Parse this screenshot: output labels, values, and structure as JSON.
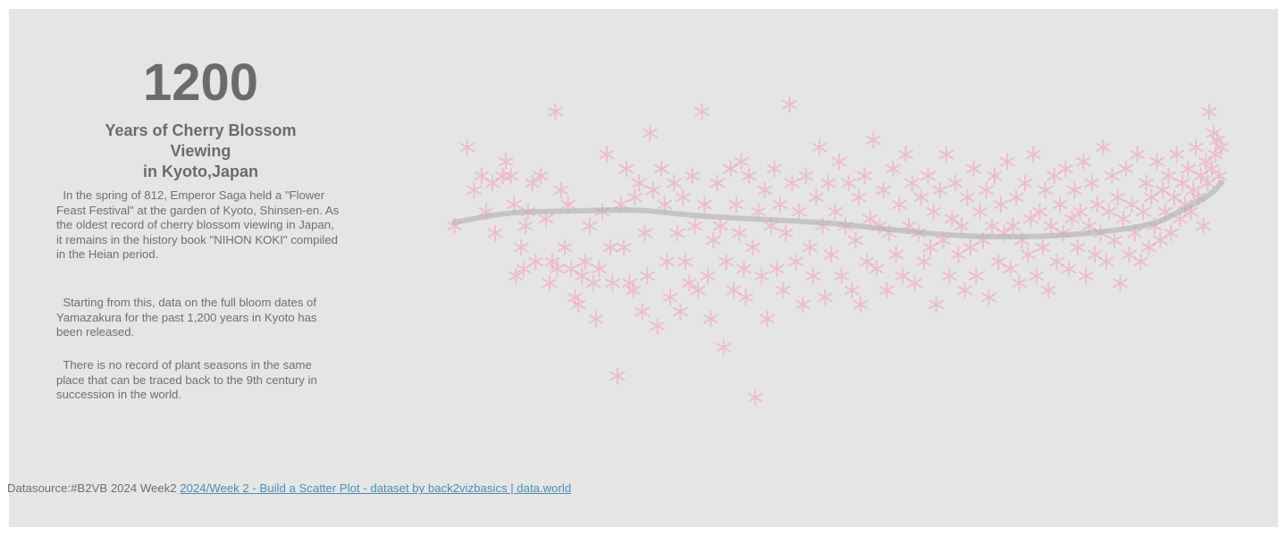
{
  "headline": {
    "number": "1200",
    "subtitle_line1": "Years of Cherry Blossom",
    "subtitle_line2": "Viewing",
    "subtitle_line3": "in Kyoto,Japan"
  },
  "paragraphs": [
    "In the spring of 812, Emperor Saga held a \"Flower Feast Festival\" at the garden of Kyoto, Shinsen-en. As the oldest record of cherry blossom viewing in Japan, it remains in the history book \"NIHON KOKI\" compiled in the Heian period.",
    "Starting from this, data on the full bloom dates of Yamazakura for the past 1,200 years in Kyoto has been released.",
    "There is no record of plant seasons in the same place that can be traced back to the 9th century in succession in the world."
  ],
  "footer": {
    "prefix": "Datasource:#B2VB 2024 Week2 ",
    "link_text": "2024/Week 2 - Build a Scatter Plot - dataset by back2vizbasics | data.world"
  },
  "colors": {
    "background": "#e5e5e5",
    "marker": "#f0a0be",
    "trend": "#b4b4b4",
    "text": "#6b6b6b",
    "link": "#4a8fb3"
  },
  "chart_data": {
    "type": "scatter",
    "marker": "asterisk",
    "grid": false,
    "axes_visible": false,
    "xlim": [
      800,
      2025
    ],
    "ylim": [
      80,
      125
    ],
    "trend_line": {
      "x": [
        812,
        900,
        1000,
        1100,
        1200,
        1300,
        1400,
        1500,
        1600,
        1700,
        1800,
        1900,
        1950,
        2000,
        2021
      ],
      "y": [
        104.5,
        105.8,
        106.1,
        106.2,
        105.4,
        104.9,
        104.4,
        103.5,
        102.7,
        102.5,
        102.9,
        104.1,
        105.8,
        108.3,
        110.1
      ]
    },
    "points": [
      [
        812,
        104
      ],
      [
        832,
        115
      ],
      [
        843,
        109
      ],
      [
        855,
        111
      ],
      [
        862,
        106
      ],
      [
        872,
        110
      ],
      [
        876,
        103
      ],
      [
        888,
        111
      ],
      [
        893,
        113
      ],
      [
        901,
        111
      ],
      [
        906,
        107
      ],
      [
        909,
        97
      ],
      [
        917,
        101
      ],
      [
        921,
        98
      ],
      [
        924,
        104
      ],
      [
        928,
        106
      ],
      [
        935,
        110
      ],
      [
        940,
        99
      ],
      [
        948,
        111
      ],
      [
        956,
        105
      ],
      [
        962,
        96
      ],
      [
        966,
        99
      ],
      [
        971,
        120
      ],
      [
        974,
        98
      ],
      [
        980,
        109
      ],
      [
        986,
        101
      ],
      [
        991,
        107
      ],
      [
        996,
        98
      ],
      [
        1002,
        94
      ],
      [
        1007,
        93
      ],
      [
        1013,
        97
      ],
      [
        1018,
        99
      ],
      [
        1025,
        104
      ],
      [
        1031,
        96
      ],
      [
        1035,
        91
      ],
      [
        1040,
        98
      ],
      [
        1045,
        106
      ],
      [
        1052,
        114
      ],
      [
        1058,
        101
      ],
      [
        1061,
        96
      ],
      [
        1069,
        83
      ],
      [
        1074,
        107
      ],
      [
        1079,
        101
      ],
      [
        1083,
        112
      ],
      [
        1088,
        96
      ],
      [
        1094,
        95
      ],
      [
        1096,
        108
      ],
      [
        1103,
        110
      ],
      [
        1108,
        92
      ],
      [
        1112,
        103
      ],
      [
        1116,
        97
      ],
      [
        1120,
        117
      ],
      [
        1125,
        109
      ],
      [
        1132,
        90
      ],
      [
        1138,
        112
      ],
      [
        1143,
        107
      ],
      [
        1147,
        99
      ],
      [
        1152,
        94
      ],
      [
        1158,
        110
      ],
      [
        1163,
        103
      ],
      [
        1168,
        92
      ],
      [
        1172,
        108
      ],
      [
        1176,
        99
      ],
      [
        1182,
        96
      ],
      [
        1187,
        111
      ],
      [
        1191,
        104
      ],
      [
        1196,
        95
      ],
      [
        1202,
        120
      ],
      [
        1206,
        107
      ],
      [
        1211,
        97
      ],
      [
        1216,
        91
      ],
      [
        1220,
        102
      ],
      [
        1226,
        110
      ],
      [
        1231,
        104
      ],
      [
        1236,
        87
      ],
      [
        1240,
        99
      ],
      [
        1247,
        112
      ],
      [
        1252,
        95
      ],
      [
        1256,
        107
      ],
      [
        1261,
        103
      ],
      [
        1264,
        113
      ],
      [
        1268,
        98
      ],
      [
        1271,
        94
      ],
      [
        1276,
        111
      ],
      [
        1282,
        101
      ],
      [
        1286,
        80
      ],
      [
        1291,
        106
      ],
      [
        1296,
        97
      ],
      [
        1301,
        109
      ],
      [
        1305,
        91
      ],
      [
        1311,
        104
      ],
      [
        1316,
        112
      ],
      [
        1320,
        98
      ],
      [
        1325,
        107
      ],
      [
        1330,
        95
      ],
      [
        1334,
        103
      ],
      [
        1340,
        121
      ],
      [
        1344,
        110
      ],
      [
        1350,
        99
      ],
      [
        1355,
        106
      ],
      [
        1361,
        93
      ],
      [
        1366,
        111
      ],
      [
        1372,
        101
      ],
      [
        1377,
        97
      ],
      [
        1382,
        108
      ],
      [
        1387,
        115
      ],
      [
        1392,
        104
      ],
      [
        1396,
        94
      ],
      [
        1401,
        110
      ],
      [
        1406,
        100
      ],
      [
        1412,
        106
      ],
      [
        1418,
        113
      ],
      [
        1422,
        97
      ],
      [
        1428,
        104
      ],
      [
        1433,
        110
      ],
      [
        1438,
        95
      ],
      [
        1444,
        102
      ],
      [
        1449,
        108
      ],
      [
        1452,
        93
      ],
      [
        1458,
        111
      ],
      [
        1462,
        99
      ],
      [
        1467,
        105
      ],
      [
        1472,
        116
      ],
      [
        1477,
        98
      ],
      [
        1482,
        104
      ],
      [
        1488,
        109
      ],
      [
        1493,
        95
      ],
      [
        1497,
        103
      ],
      [
        1503,
        112
      ],
      [
        1508,
        100
      ],
      [
        1513,
        107
      ],
      [
        1518,
        97
      ],
      [
        1523,
        114
      ],
      [
        1528,
        104
      ],
      [
        1533,
        110
      ],
      [
        1537,
        96
      ],
      [
        1543,
        103
      ],
      [
        1547,
        108
      ],
      [
        1552,
        99
      ],
      [
        1558,
        111
      ],
      [
        1562,
        101
      ],
      [
        1567,
        106
      ],
      [
        1571,
        93
      ],
      [
        1577,
        109
      ],
      [
        1582,
        102
      ],
      [
        1587,
        114
      ],
      [
        1592,
        97
      ],
      [
        1596,
        105
      ],
      [
        1601,
        110
      ],
      [
        1606,
        100
      ],
      [
        1611,
        104
      ],
      [
        1616,
        95
      ],
      [
        1620,
        108
      ],
      [
        1625,
        101
      ],
      [
        1630,
        112
      ],
      [
        1634,
        97
      ],
      [
        1640,
        106
      ],
      [
        1645,
        102
      ],
      [
        1650,
        109
      ],
      [
        1654,
        94
      ],
      [
        1659,
        104
      ],
      [
        1663,
        111
      ],
      [
        1669,
        99
      ],
      [
        1673,
        107
      ],
      [
        1678,
        103
      ],
      [
        1683,
        113
      ],
      [
        1688,
        98
      ],
      [
        1692,
        104
      ],
      [
        1697,
        108
      ],
      [
        1702,
        96
      ],
      [
        1706,
        102
      ],
      [
        1711,
        110
      ],
      [
        1716,
        100
      ],
      [
        1720,
        105
      ],
      [
        1724,
        114
      ],
      [
        1729,
        97
      ],
      [
        1734,
        106
      ],
      [
        1739,
        101
      ],
      [
        1743,
        109
      ],
      [
        1748,
        95
      ],
      [
        1752,
        104
      ],
      [
        1757,
        111
      ],
      [
        1761,
        99
      ],
      [
        1766,
        107
      ],
      [
        1771,
        103
      ],
      [
        1775,
        112
      ],
      [
        1780,
        98
      ],
      [
        1785,
        105
      ],
      [
        1789,
        109
      ],
      [
        1794,
        101
      ],
      [
        1798,
        106
      ],
      [
        1803,
        113
      ],
      [
        1807,
        97
      ],
      [
        1812,
        104
      ],
      [
        1816,
        110
      ],
      [
        1821,
        100
      ],
      [
        1825,
        107
      ],
      [
        1830,
        103
      ],
      [
        1834,
        115
      ],
      [
        1839,
        99
      ],
      [
        1843,
        106
      ],
      [
        1848,
        111
      ],
      [
        1852,
        102
      ],
      [
        1857,
        108
      ],
      [
        1861,
        96
      ],
      [
        1866,
        105
      ],
      [
        1870,
        112
      ],
      [
        1875,
        100
      ],
      [
        1879,
        107
      ],
      [
        1884,
        103
      ],
      [
        1888,
        114
      ],
      [
        1893,
        99
      ],
      [
        1897,
        106
      ],
      [
        1902,
        110
      ],
      [
        1906,
        101
      ],
      [
        1910,
        108
      ],
      [
        1915,
        104
      ],
      [
        1919,
        113
      ],
      [
        1924,
        102
      ],
      [
        1928,
        109
      ],
      [
        1932,
        106
      ],
      [
        1937,
        111
      ],
      [
        1941,
        103
      ],
      [
        1946,
        108
      ],
      [
        1950,
        114
      ],
      [
        1955,
        105
      ],
      [
        1959,
        110
      ],
      [
        1963,
        107
      ],
      [
        1968,
        112
      ],
      [
        1972,
        106
      ],
      [
        1976,
        109
      ],
      [
        1980,
        115
      ],
      [
        1984,
        108
      ],
      [
        1988,
        111
      ],
      [
        1992,
        104
      ],
      [
        1996,
        113
      ],
      [
        1999,
        110
      ],
      [
        2001,
        120
      ],
      [
        2005,
        112
      ],
      [
        2008,
        117
      ],
      [
        2011,
        114
      ],
      [
        2014,
        116
      ],
      [
        2017,
        111
      ],
      [
        2020,
        115
      ]
    ]
  }
}
